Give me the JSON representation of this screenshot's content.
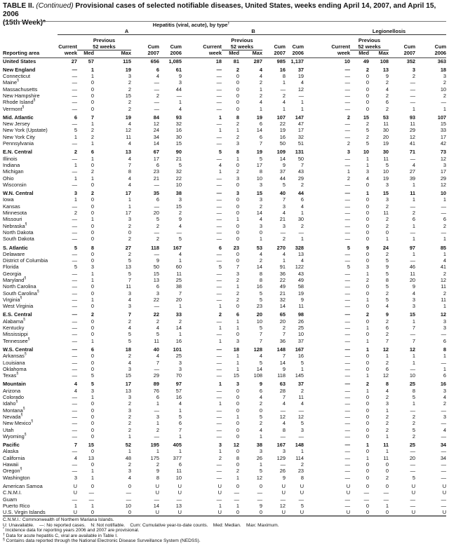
{
  "title": {
    "prefix": "TABLE II. ",
    "continued": "(Continued)",
    "text": " Provisional cases of selected notifiable diseases, United States, weeks ending April 14, 2007, and April 15, 2006",
    "line2": "(15th Week)*"
  },
  "header": {
    "hepatitis": "Hepatitis (viral, acute), by type",
    "hepatitis_mark": "†",
    "a": "A",
    "b": "B",
    "legionellosis": "Legionellosis",
    "previous": "Previous",
    "weeks52": "52 weeks",
    "current": "Current",
    "week": "week",
    "med": "Med",
    "max": "Max",
    "cum": "Cum",
    "y2007": "2007",
    "y2006": "2006",
    "reporting_area": "Reporting area"
  },
  "groups": [
    [
      [
        "United States",
        "",
        "27",
        "57",
        "115",
        "656",
        "1,085",
        "18",
        "81",
        "287",
        "985",
        "1,137",
        "10",
        "49",
        "108",
        "352",
        "363"
      ]
    ],
    [
      [
        "New England",
        "",
        "—",
        "1",
        "19",
        "6",
        "61",
        "—",
        "2",
        "4",
        "16",
        "37",
        "—",
        "2",
        "13",
        "3",
        "18"
      ],
      [
        "Connecticut",
        "",
        "—",
        "1",
        "3",
        "4",
        "9",
        "—",
        "0",
        "4",
        "8",
        "19",
        "—",
        "0",
        "9",
        "2",
        "3"
      ],
      [
        "Maine",
        "§",
        "—",
        "0",
        "2",
        "—",
        "3",
        "—",
        "0",
        "2",
        "1",
        "4",
        "—",
        "0",
        "2",
        "—",
        "2"
      ],
      [
        "Massachusetts",
        "",
        "—",
        "0",
        "2",
        "—",
        "44",
        "—",
        "0",
        "1",
        "—",
        "12",
        "—",
        "0",
        "4",
        "—",
        "10"
      ],
      [
        "New Hampshire",
        "",
        "—",
        "0",
        "15",
        "2",
        "—",
        "—",
        "0",
        "2",
        "2",
        "—",
        "—",
        "0",
        "2",
        "—",
        "2"
      ],
      [
        "Rhode Island",
        "§",
        "—",
        "0",
        "2",
        "—",
        "1",
        "—",
        "0",
        "4",
        "4",
        "1",
        "—",
        "0",
        "6",
        "—",
        "—"
      ],
      [
        "Vermont",
        "§",
        "—",
        "0",
        "2",
        "—",
        "4",
        "—",
        "0",
        "1",
        "1",
        "1",
        "—",
        "0",
        "2",
        "1",
        "1"
      ]
    ],
    [
      [
        "Mid. Atlantic",
        "",
        "6",
        "7",
        "19",
        "84",
        "93",
        "1",
        "8",
        "19",
        "107",
        "147",
        "2",
        "15",
        "53",
        "93",
        "107"
      ],
      [
        "New Jersey",
        "",
        "—",
        "1",
        "4",
        "12",
        "32",
        "—",
        "2",
        "6",
        "22",
        "47",
        "—",
        "2",
        "11",
        "11",
        "15"
      ],
      [
        "New York (Upstate)",
        "",
        "5",
        "2",
        "12",
        "24",
        "16",
        "1",
        "1",
        "14",
        "19",
        "17",
        "—",
        "5",
        "30",
        "29",
        "33"
      ],
      [
        "New York City",
        "",
        "1",
        "2",
        "11",
        "34",
        "30",
        "—",
        "2",
        "6",
        "16",
        "32",
        "—",
        "2",
        "20",
        "12",
        "17"
      ],
      [
        "Pennsylvania",
        "",
        "—",
        "1",
        "4",
        "14",
        "15",
        "—",
        "3",
        "7",
        "50",
        "51",
        "2",
        "5",
        "19",
        "41",
        "42"
      ]
    ],
    [
      [
        "E.N. Central",
        "",
        "2",
        "6",
        "13",
        "67",
        "90",
        "5",
        "8",
        "19",
        "109",
        "131",
        "3",
        "10",
        "30",
        "71",
        "73"
      ],
      [
        "Illinois",
        "",
        "—",
        "1",
        "4",
        "17",
        "21",
        "—",
        "1",
        "5",
        "14",
        "50",
        "—",
        "1",
        "11",
        "—",
        "12"
      ],
      [
        "Indiana",
        "",
        "1",
        "0",
        "7",
        "6",
        "5",
        "4",
        "0",
        "17",
        "9",
        "7",
        "—",
        "1",
        "5",
        "4",
        "3"
      ],
      [
        "Michigan",
        "",
        "—",
        "2",
        "8",
        "23",
        "32",
        "1",
        "2",
        "8",
        "37",
        "43",
        "1",
        "3",
        "10",
        "27",
        "17"
      ],
      [
        "Ohio",
        "",
        "1",
        "1",
        "4",
        "21",
        "22",
        "—",
        "3",
        "10",
        "44",
        "29",
        "2",
        "4",
        "19",
        "39",
        "29"
      ],
      [
        "Wisconsin",
        "",
        "—",
        "0",
        "4",
        "—",
        "10",
        "—",
        "0",
        "3",
        "5",
        "2",
        "—",
        "0",
        "3",
        "1",
        "12"
      ]
    ],
    [
      [
        "W.N. Central",
        "",
        "3",
        "2",
        "17",
        "35",
        "38",
        "—",
        "3",
        "15",
        "40",
        "44",
        "—",
        "1",
        "15",
        "11",
        "10"
      ],
      [
        "Iowa",
        "",
        "1",
        "0",
        "1",
        "6",
        "3",
        "—",
        "0",
        "3",
        "7",
        "6",
        "—",
        "0",
        "3",
        "1",
        "1"
      ],
      [
        "Kansas",
        "",
        "—",
        "0",
        "1",
        "—",
        "15",
        "—",
        "0",
        "2",
        "3",
        "4",
        "—",
        "0",
        "2",
        "—",
        "—"
      ],
      [
        "Minnesota",
        "",
        "2",
        "0",
        "17",
        "20",
        "2",
        "—",
        "0",
        "14",
        "4",
        "1",
        "—",
        "0",
        "11",
        "2",
        "—"
      ],
      [
        "Missouri",
        "",
        "—",
        "1",
        "3",
        "5",
        "9",
        "—",
        "1",
        "4",
        "21",
        "30",
        "—",
        "0",
        "2",
        "6",
        "6"
      ],
      [
        "Nebraska",
        "§",
        "—",
        "0",
        "2",
        "2",
        "4",
        "—",
        "0",
        "3",
        "3",
        "2",
        "—",
        "0",
        "2",
        "1",
        "2"
      ],
      [
        "North Dakota",
        "",
        "—",
        "0",
        "0",
        "—",
        "—",
        "—",
        "0",
        "0",
        "—",
        "—",
        "—",
        "0",
        "0",
        "—",
        "—"
      ],
      [
        "South Dakota",
        "",
        "—",
        "0",
        "2",
        "2",
        "5",
        "—",
        "0",
        "1",
        "2",
        "1",
        "—",
        "0",
        "1",
        "1",
        "1"
      ]
    ],
    [
      [
        "S. Atlantic",
        "",
        "5",
        "8",
        "27",
        "118",
        "167",
        "6",
        "23",
        "53",
        "270",
        "328",
        "5",
        "9",
        "24",
        "97",
        "85"
      ],
      [
        "Delaware",
        "",
        "—",
        "0",
        "2",
        "—",
        "4",
        "—",
        "0",
        "4",
        "4",
        "13",
        "—",
        "0",
        "2",
        "1",
        "1"
      ],
      [
        "District of Columbia",
        "",
        "—",
        "0",
        "5",
        "9",
        "1",
        "—",
        "0",
        "2",
        "1",
        "4",
        "—",
        "0",
        "5",
        "—",
        "4"
      ],
      [
        "Florida",
        "",
        "5",
        "3",
        "13",
        "50",
        "60",
        "5",
        "7",
        "14",
        "91",
        "122",
        "5",
        "3",
        "9",
        "46",
        "41"
      ],
      [
        "Georgia",
        "",
        "—",
        "1",
        "5",
        "15",
        "11",
        "—",
        "3",
        "8",
        "36",
        "43",
        "—",
        "1",
        "5",
        "11",
        "2"
      ],
      [
        "Maryland",
        "§",
        "—",
        "1",
        "7",
        "13",
        "25",
        "—",
        "2",
        "8",
        "22",
        "49",
        "—",
        "2",
        "8",
        "20",
        "12"
      ],
      [
        "North Carolina",
        "",
        "—",
        "0",
        "11",
        "6",
        "38",
        "—",
        "1",
        "16",
        "49",
        "58",
        "—",
        "0",
        "5",
        "9",
        "11"
      ],
      [
        "South Carolina",
        "§",
        "—",
        "0",
        "3",
        "3",
        "7",
        "—",
        "2",
        "5",
        "21",
        "19",
        "—",
        "0",
        "2",
        "4",
        "2"
      ],
      [
        "Virginia",
        "§",
        "—",
        "1",
        "4",
        "22",
        "20",
        "—",
        "2",
        "5",
        "32",
        "9",
        "—",
        "1",
        "5",
        "3",
        "11"
      ],
      [
        "West Virginia",
        "",
        "—",
        "0",
        "3",
        "—",
        "1",
        "1",
        "0",
        "23",
        "14",
        "11",
        "—",
        "0",
        "4",
        "3",
        "1"
      ]
    ],
    [
      [
        "E.S. Central",
        "",
        "—",
        "2",
        "7",
        "22",
        "33",
        "2",
        "6",
        "20",
        "65",
        "98",
        "—",
        "2",
        "9",
        "15",
        "12"
      ],
      [
        "Alabama",
        "§",
        "—",
        "0",
        "2",
        "2",
        "2",
        "—",
        "1",
        "10",
        "20",
        "26",
        "—",
        "0",
        "2",
        "1",
        "3"
      ],
      [
        "Kentucky",
        "",
        "—",
        "0",
        "4",
        "4",
        "14",
        "1",
        "1",
        "5",
        "2",
        "25",
        "—",
        "1",
        "6",
        "7",
        "3"
      ],
      [
        "Mississippi",
        "",
        "—",
        "0",
        "5",
        "5",
        "1",
        "—",
        "0",
        "7",
        "7",
        "10",
        "—",
        "0",
        "2",
        "—",
        "—"
      ],
      [
        "Tennessee",
        "§",
        "—",
        "1",
        "5",
        "11",
        "16",
        "1",
        "3",
        "7",
        "36",
        "37",
        "—",
        "1",
        "7",
        "7",
        "6"
      ]
    ],
    [
      [
        "W.S. Central",
        "",
        "—",
        "6",
        "18",
        "40",
        "101",
        "—",
        "18",
        "128",
        "148",
        "167",
        "—",
        "1",
        "12",
        "12",
        "8"
      ],
      [
        "Arkansas",
        "§",
        "—",
        "0",
        "2",
        "4",
        "25",
        "—",
        "1",
        "4",
        "7",
        "16",
        "—",
        "0",
        "1",
        "1",
        "1"
      ],
      [
        "Louisiana",
        "",
        "—",
        "0",
        "4",
        "7",
        "3",
        "—",
        "1",
        "5",
        "14",
        "5",
        "—",
        "0",
        "2",
        "1",
        "—"
      ],
      [
        "Oklahoma",
        "",
        "—",
        "0",
        "3",
        "—",
        "3",
        "—",
        "1",
        "14",
        "9",
        "1",
        "—",
        "0",
        "6",
        "—",
        "1"
      ],
      [
        "Texas",
        "§",
        "—",
        "5",
        "15",
        "29",
        "70",
        "—",
        "15",
        "108",
        "118",
        "145",
        "—",
        "1",
        "12",
        "10",
        "6"
      ]
    ],
    [
      [
        "Mountain",
        "",
        "4",
        "5",
        "17",
        "89",
        "97",
        "1",
        "3",
        "9",
        "63",
        "37",
        "—",
        "2",
        "8",
        "25",
        "16"
      ],
      [
        "Arizona",
        "",
        "4",
        "3",
        "13",
        "76",
        "57",
        "—",
        "0",
        "6",
        "28",
        "2",
        "—",
        "1",
        "4",
        "8",
        "3"
      ],
      [
        "Colorado",
        "",
        "—",
        "1",
        "3",
        "6",
        "16",
        "—",
        "0",
        "4",
        "7",
        "11",
        "—",
        "0",
        "2",
        "5",
        "4"
      ],
      [
        "Idaho",
        "§",
        "—",
        "0",
        "2",
        "1",
        "4",
        "1",
        "0",
        "2",
        "4",
        "4",
        "—",
        "0",
        "3",
        "1",
        "2"
      ],
      [
        "Montana",
        "§",
        "—",
        "0",
        "3",
        "—",
        "1",
        "—",
        "0",
        "0",
        "—",
        "—",
        "—",
        "0",
        "1",
        "—",
        "—"
      ],
      [
        "Nevada",
        "§",
        "—",
        "0",
        "2",
        "3",
        "5",
        "—",
        "1",
        "5",
        "12",
        "12",
        "—",
        "0",
        "2",
        "2",
        "3"
      ],
      [
        "New Mexico",
        "§",
        "—",
        "0",
        "2",
        "1",
        "6",
        "—",
        "0",
        "2",
        "4",
        "5",
        "—",
        "0",
        "2",
        "2",
        "—"
      ],
      [
        "Utah",
        "",
        "—",
        "0",
        "2",
        "2",
        "7",
        "—",
        "0",
        "4",
        "8",
        "3",
        "—",
        "0",
        "2",
        "5",
        "4"
      ],
      [
        "Wyoming",
        "§",
        "—",
        "0",
        "1",
        "—",
        "1",
        "—",
        "0",
        "1",
        "—",
        "—",
        "—",
        "0",
        "1",
        "2",
        "—"
      ]
    ],
    [
      [
        "Pacific",
        "",
        "7",
        "15",
        "52",
        "195",
        "405",
        "3",
        "12",
        "38",
        "167",
        "148",
        "—",
        "1",
        "11",
        "25",
        "34"
      ],
      [
        "Alaska",
        "",
        "—",
        "0",
        "1",
        "1",
        "1",
        "1",
        "0",
        "3",
        "3",
        "1",
        "—",
        "0",
        "1",
        "—",
        "—"
      ],
      [
        "California",
        "",
        "4",
        "13",
        "48",
        "175",
        "377",
        "2",
        "8",
        "26",
        "129",
        "114",
        "—",
        "1",
        "11",
        "20",
        "34"
      ],
      [
        "Hawaii",
        "",
        "—",
        "0",
        "2",
        "2",
        "6",
        "—",
        "0",
        "1",
        "—",
        "2",
        "—",
        "0",
        "0",
        "—",
        "—"
      ],
      [
        "Oregon",
        "§",
        "—",
        "1",
        "3",
        "9",
        "11",
        "—",
        "2",
        "5",
        "26",
        "23",
        "—",
        "0",
        "0",
        "—",
        "—"
      ],
      [
        "Washington",
        "",
        "3",
        "1",
        "4",
        "8",
        "10",
        "—",
        "1",
        "12",
        "9",
        "8",
        "—",
        "0",
        "2",
        "5",
        "—"
      ]
    ],
    [
      [
        "American Samoa",
        "",
        "U",
        "0",
        "0",
        "U",
        "U",
        "U",
        "0",
        "0",
        "U",
        "U",
        "U",
        "0",
        "0",
        "U",
        "U"
      ],
      [
        "C.N.M.I.",
        "",
        "U",
        "—",
        "—",
        "U",
        "U",
        "U",
        "—",
        "—",
        "U",
        "U",
        "U",
        "—",
        "—",
        "U",
        "U"
      ],
      [
        "Guam",
        "",
        "—",
        "—",
        "—",
        "—",
        "—",
        "—",
        "—",
        "—",
        "—",
        "—",
        "—",
        "—",
        "—",
        "—",
        "—"
      ],
      [
        "Puerto Rico",
        "",
        "1",
        "1",
        "10",
        "14",
        "13",
        "1",
        "1",
        "9",
        "12",
        "5",
        "—",
        "0",
        "1",
        "—",
        "—"
      ],
      [
        "U.S. Virgin Islands",
        "",
        "U",
        "0",
        "0",
        "U",
        "U",
        "U",
        "0",
        "0",
        "U",
        "U",
        "U",
        "0",
        "0",
        "U",
        "U"
      ]
    ]
  ],
  "footnotes": {
    "cnmi": "C.N.M.I.: Commonwealth of Northern Mariana Islands.",
    "legend": "U: Unavailable.    —: No reported cases.    N: Not notifiable.    Cum: Cumulative year-to-date counts.    Med: Median.    Max: Maximum.",
    "star_mark": "*",
    "star": "Incidence data for reporting years 2006 and 2007 are provisional.",
    "dagger_mark": "†",
    "dagger": "Data for acute hepatitis C, viral are available in Table I.",
    "section_mark": "§",
    "section": "Contains data reported through the National Electronic Disease Surveillance System (NEDSS)."
  }
}
